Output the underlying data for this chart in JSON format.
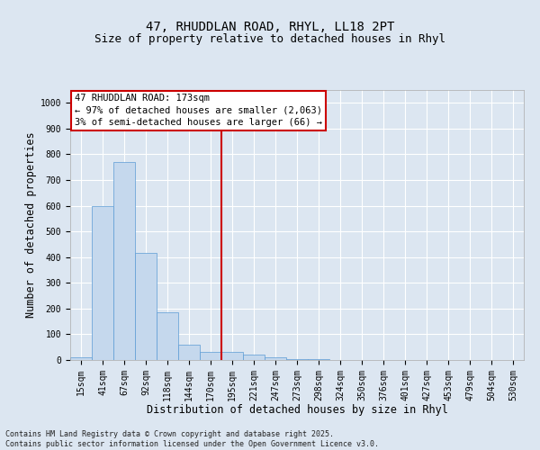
{
  "title_line1": "47, RHUDDLAN ROAD, RHYL, LL18 2PT",
  "title_line2": "Size of property relative to detached houses in Rhyl",
  "xlabel": "Distribution of detached houses by size in Rhyl",
  "ylabel": "Number of detached properties",
  "categories": [
    "15sqm",
    "41sqm",
    "67sqm",
    "92sqm",
    "118sqm",
    "144sqm",
    "170sqm",
    "195sqm",
    "221sqm",
    "247sqm",
    "273sqm",
    "298sqm",
    "324sqm",
    "350sqm",
    "376sqm",
    "401sqm",
    "427sqm",
    "453sqm",
    "479sqm",
    "504sqm",
    "530sqm"
  ],
  "values": [
    10,
    600,
    770,
    415,
    185,
    60,
    30,
    30,
    20,
    10,
    5,
    2,
    0,
    0,
    0,
    0,
    0,
    0,
    0,
    0,
    0
  ],
  "bar_color": "#c5d8ed",
  "bar_edge_color": "#5b9bd5",
  "vline_color": "#cc0000",
  "vline_x": 6.5,
  "annotation_text": "47 RHUDDLAN ROAD: 173sqm\n← 97% of detached houses are smaller (2,063)\n3% of semi-detached houses are larger (66) →",
  "annotation_box_color": "#ffffff",
  "annotation_box_edge": "#cc0000",
  "ylim": [
    0,
    1050
  ],
  "yticks": [
    0,
    100,
    200,
    300,
    400,
    500,
    600,
    700,
    800,
    900,
    1000
  ],
  "background_color": "#dce6f1",
  "plot_bg_color": "#dce6f1",
  "footer_text": "Contains HM Land Registry data © Crown copyright and database right 2025.\nContains public sector information licensed under the Open Government Licence v3.0.",
  "grid_color": "#ffffff",
  "title_fontsize": 10,
  "subtitle_fontsize": 9,
  "tick_fontsize": 7,
  "label_fontsize": 8.5,
  "annotation_fontsize": 7.5,
  "footer_fontsize": 6
}
